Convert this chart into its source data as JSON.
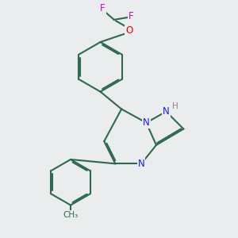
{
  "bg_color": "#eaecee",
  "bond_color": "#2d6a4f",
  "nitrogen_color": "#1a1aff",
  "oxygen_color": "#dd0000",
  "fluorine_color": "#cc00cc",
  "hydrogen_color": "#888888",
  "line_width": 1.5,
  "dbo": 0.055,
  "xlim": [
    1.5,
    10.0
  ],
  "ylim": [
    1.0,
    10.5
  ]
}
